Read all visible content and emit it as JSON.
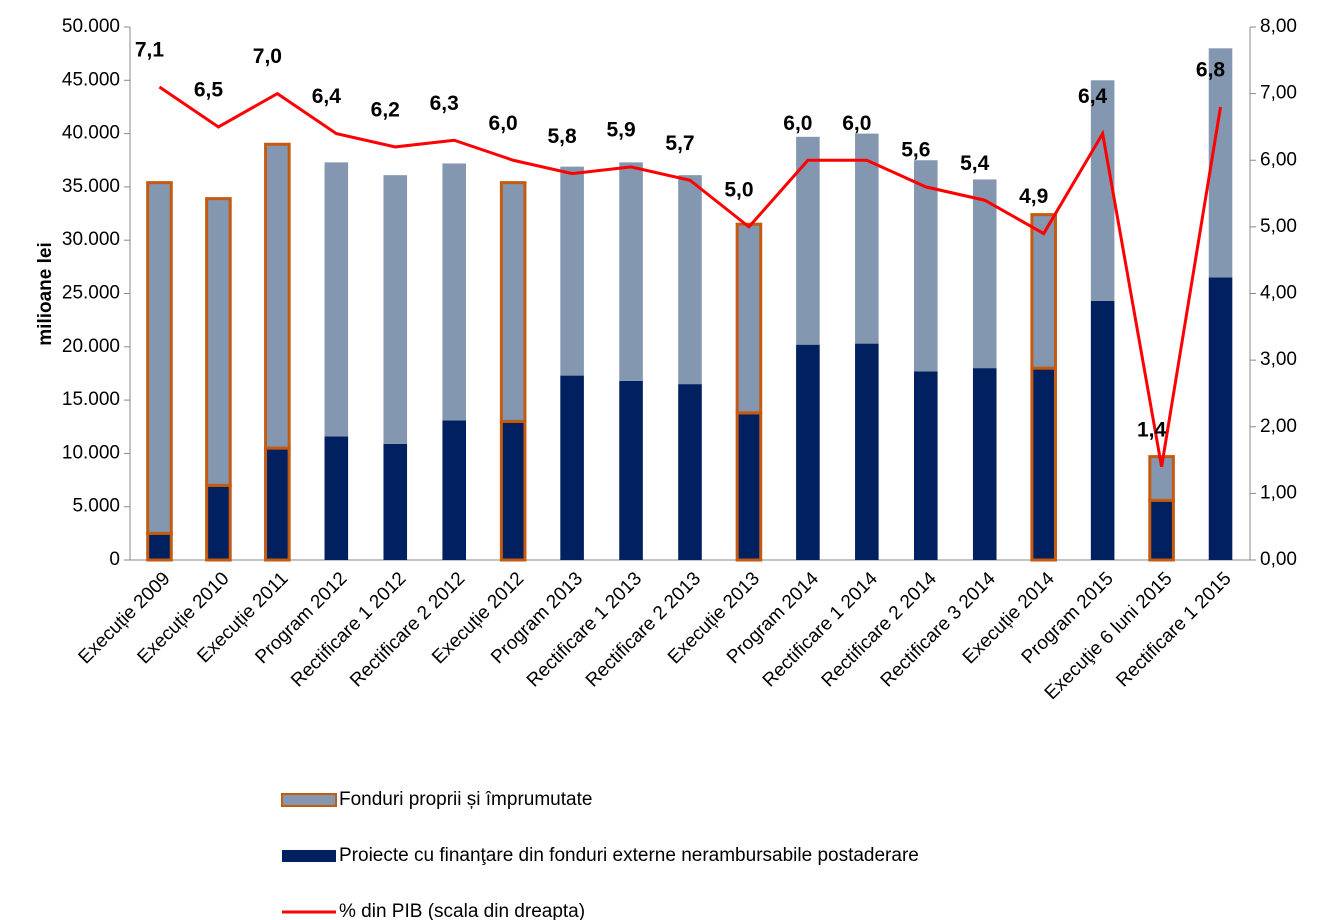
{
  "chart_data": {
    "type": "bar_line",
    "ylabel": "milioane lei",
    "categories": [
      "Execuție 2009",
      "Execuție 2010",
      "Execuție 2011",
      "Program 2012",
      "Rectificare 1 2012",
      "Rectificare 2 2012",
      "Execuție 2012",
      "Program 2013",
      "Rectificare 1 2013",
      "Rectificare 2 2013",
      "Execuție 2013",
      "Program 2014",
      "Rectificare 1 2014",
      "Rectificare 2 2014",
      "Rectificare 3 2014",
      "Execuție 2014",
      "Program 2015",
      "Execuţie 6 luni 2015",
      "Rectificare 1 2015"
    ],
    "series": [
      {
        "name": "Proiecte cu finanţare din fonduri externe nerambursabile postaderare",
        "color": "#002060",
        "stack": true,
        "values": [
          2500,
          7000,
          10500,
          11600,
          10900,
          13100,
          13000,
          17300,
          16800,
          16500,
          13800,
          20200,
          20300,
          17700,
          18000,
          18000,
          24300,
          5600,
          26500
        ]
      },
      {
        "name": "Fonduri proprii și împrumutate",
        "color": "#8497b0",
        "stack": true,
        "values": [
          32900,
          26900,
          28500,
          25700,
          25200,
          24100,
          22400,
          19600,
          20500,
          19600,
          17700,
          19500,
          19700,
          19800,
          17700,
          14400,
          20700,
          4100,
          21500
        ]
      },
      {
        "name": "% din PIB (scala din dreapta)",
        "color": "#ff0000",
        "axis": "y2",
        "line": true,
        "values": [
          7.1,
          6.5,
          7.0,
          6.4,
          6.2,
          6.3,
          6.0,
          5.8,
          5.9,
          5.7,
          5.0,
          6.0,
          6.0,
          5.6,
          5.4,
          4.9,
          6.4,
          1.4,
          6.8
        ],
        "value_labels": [
          "7,1",
          "6,5",
          "7,0",
          "6,4",
          "6,2",
          "6,3",
          "6,0",
          "5,8",
          "5,9",
          "5,7",
          "5,0",
          "6,0",
          "6,0",
          "5,6",
          "5,4",
          "4,9",
          "6,4",
          "1,4",
          "6,8"
        ]
      }
    ],
    "highlight": {
      "color": "#c55a11",
      "categories": [
        0,
        1,
        2,
        6,
        10,
        15,
        17
      ]
    },
    "ylim": [
      0,
      50000
    ],
    "yticks": [
      0,
      {
        "value": 5000,
        "label": "5.000"
      },
      {
        "value": 10000,
        "label": "10.000"
      },
      {
        "value": 15000,
        "label": "15.000"
      },
      {
        "value": 20000,
        "label": "20.000"
      },
      {
        "value": 25000,
        "label": "25.000"
      },
      {
        "value": 30000,
        "label": "30.000"
      },
      {
        "value": 35000,
        "label": "35.000"
      },
      {
        "value": 40000,
        "label": "40.000"
      },
      {
        "value": 45000,
        "label": "45.000"
      },
      {
        "value": 50000,
        "label": "50.000"
      }
    ],
    "y2lim": [
      0,
      8
    ],
    "y2ticks": [
      {
        "value": 0,
        "label": "0,00"
      },
      {
        "value": 1,
        "label": "1,00"
      },
      {
        "value": 2,
        "label": "2,00"
      },
      {
        "value": 3,
        "label": "3,00"
      },
      {
        "value": 4,
        "label": "4,00"
      },
      {
        "value": 5,
        "label": "5,00"
      },
      {
        "value": 6,
        "label": "6,00"
      },
      {
        "value": 7,
        "label": "7,00"
      },
      {
        "value": 8,
        "label": "8,00"
      }
    ],
    "legend": "bottom"
  }
}
